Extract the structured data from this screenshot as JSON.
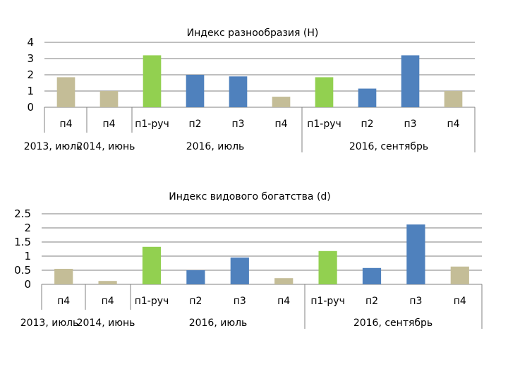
{
  "palette": {
    "beige": "#c4bd97",
    "green": "#92d050",
    "blue": "#4f81bd",
    "grid": "#7f7f7f",
    "axis": "#808080",
    "text": "#000000"
  },
  "chart_data": [
    {
      "type": "bar",
      "title": "Индекс разнообразия (Н)",
      "ylim": [
        0,
        4
      ],
      "yticks": [
        "4",
        "3",
        "2",
        "1",
        "0"
      ],
      "grid": true,
      "categories": [
        "п4",
        "п4",
        "п1-руч",
        "п2",
        "п3",
        "п4",
        "п1-руч",
        "п2",
        "п3",
        "п4"
      ],
      "values": [
        1.85,
        1.0,
        3.2,
        2.0,
        1.9,
        0.65,
        1.85,
        1.15,
        3.2,
        1.0
      ],
      "colors": [
        "beige",
        "beige",
        "green",
        "blue",
        "blue",
        "beige",
        "green",
        "blue",
        "blue",
        "beige"
      ],
      "groups": [
        {
          "label": "2013, июль",
          "span": [
            0,
            0
          ]
        },
        {
          "label": "2014, июнь",
          "span": [
            1,
            1
          ]
        },
        {
          "label": "2016, июль",
          "span": [
            2,
            5
          ]
        },
        {
          "label": "2016, сентябрь",
          "span": [
            6,
            9
          ]
        }
      ]
    },
    {
      "type": "bar",
      "title": "Индекс видового богатства (d)",
      "ylim": [
        0,
        2.5
      ],
      "yticks": [
        "2.5",
        "2",
        "1.5",
        "1",
        "0.5",
        "0"
      ],
      "grid": true,
      "categories": [
        "п4",
        "п4",
        "п1-руч",
        "п2",
        "п3",
        "п4",
        "п1-руч",
        "п2",
        "п3",
        "п4"
      ],
      "values": [
        0.55,
        0.12,
        1.33,
        0.5,
        0.95,
        0.22,
        1.18,
        0.58,
        2.12,
        0.63
      ],
      "colors": [
        "beige",
        "beige",
        "green",
        "blue",
        "blue",
        "beige",
        "green",
        "blue",
        "blue",
        "beige"
      ],
      "groups": [
        {
          "label": "2013, июль",
          "span": [
            0,
            0
          ]
        },
        {
          "label": "2014, июнь",
          "span": [
            1,
            1
          ]
        },
        {
          "label": "2016, июль",
          "span": [
            2,
            5
          ]
        },
        {
          "label": "2016, сентябрь",
          "span": [
            6,
            9
          ]
        }
      ]
    }
  ]
}
